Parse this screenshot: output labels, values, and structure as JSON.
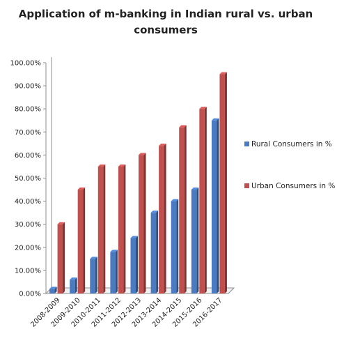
{
  "chart_data": {
    "type": "bar",
    "title_line1": "Application of m-banking in Indian rural vs. urban",
    "title_line2": "consumers",
    "categories": [
      "2008-2009",
      "2009-2010",
      "2010-2011",
      "2011-2012",
      "2012-2013",
      "2013-2014",
      "2014-2015",
      "2015-2016",
      "2016-2017"
    ],
    "series": [
      {
        "name": "Rural Consumers in %",
        "color": "#4a7bc1",
        "values": [
          2,
          6,
          15,
          18,
          24,
          35,
          40,
          45,
          75
        ]
      },
      {
        "name": "Urban Consumers in %",
        "color": "#c0504d",
        "values": [
          30,
          45,
          55,
          55,
          60,
          64,
          72,
          80,
          95
        ]
      }
    ],
    "ylim": [
      0,
      100
    ],
    "yticks": [
      "0.00%",
      "10.00%",
      "20.00%",
      "30.00%",
      "40.00%",
      "50.00%",
      "60.00%",
      "70.00%",
      "80.00%",
      "90.00%",
      "100.00%"
    ],
    "grid": false,
    "legend": "right"
  }
}
